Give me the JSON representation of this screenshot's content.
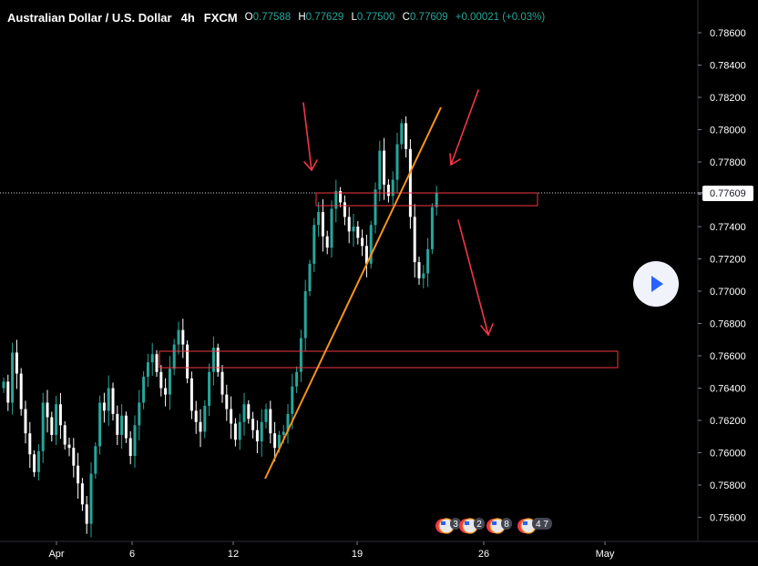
{
  "header": {
    "symbol_title": "Australian Dollar / U.S. Dollar",
    "interval": "4h",
    "source": "FXCM",
    "o_label": "O",
    "o_value": "0.77588",
    "h_label": "H",
    "h_value": "0.77629",
    "l_label": "L",
    "l_value": "0.77500",
    "c_label": "C",
    "c_value": "0.77609",
    "change": "+0.00021 (+0.03%)"
  },
  "price_scale": {
    "labels": [
      "0.78600",
      "0.78400",
      "0.78200",
      "0.78000",
      "0.77800",
      "0.77600",
      "0.77400",
      "0.77200",
      "0.77000",
      "0.76800",
      "0.76600",
      "0.76400",
      "0.76200",
      "0.76000",
      "0.75800",
      "0.75600"
    ],
    "last_price": "0.77609"
  },
  "time_scale": {
    "labels": [
      "Apr",
      "6",
      "12",
      "19",
      "26",
      "May"
    ]
  },
  "event_badges": [
    {
      "icon": "us-flag-icon",
      "count": "3"
    },
    {
      "icon": "us-flag-icon",
      "count": "2"
    },
    {
      "icon": "us-flag-icon",
      "count": "8"
    },
    {
      "icon": "us-flag-icon",
      "count": "4 7"
    }
  ],
  "colors": {
    "up": "#26a69a",
    "down": "#ffffff",
    "trendline": "#f7931a",
    "arrows": "#f23645",
    "zones": "#f23645",
    "background": "#000000"
  },
  "chart_data": {
    "type": "candlestick",
    "title": "Australian Dollar / U.S. Dollar",
    "interval": "4h",
    "ylim": [
      0.7545,
      0.7872
    ],
    "x_ticks": [
      "Apr",
      "6",
      "12",
      "19",
      "26",
      "May"
    ],
    "grid": false,
    "last_price": 0.77609,
    "closes_approx": [
      0.7644,
      0.7631,
      0.7662,
      0.7649,
      0.7627,
      0.7612,
      0.7599,
      0.7588,
      0.7601,
      0.7631,
      0.7622,
      0.7611,
      0.763,
      0.7617,
      0.7605,
      0.7603,
      0.7592,
      0.7581,
      0.7568,
      0.7556,
      0.7587,
      0.7604,
      0.7631,
      0.7626,
      0.764,
      0.7624,
      0.7611,
      0.7623,
      0.7609,
      0.7598,
      0.7617,
      0.7631,
      0.7647,
      0.7656,
      0.7661,
      0.765,
      0.764,
      0.7636,
      0.7652,
      0.7667,
      0.7676,
      0.7667,
      0.7646,
      0.7626,
      0.7619,
      0.7613,
      0.7629,
      0.765,
      0.7665,
      0.765,
      0.7636,
      0.7627,
      0.7618,
      0.7608,
      0.7619,
      0.763,
      0.7621,
      0.7614,
      0.7607,
      0.7619,
      0.7627,
      0.7612,
      0.7603,
      0.7611,
      0.7613,
      0.7624,
      0.7641,
      0.765,
      0.7671,
      0.77,
      0.7717,
      0.7741,
      0.7749,
      0.7734,
      0.7727,
      0.7751,
      0.7762,
      0.7755,
      0.7746,
      0.7737,
      0.774,
      0.7733,
      0.7728,
      0.7717,
      0.7741,
      0.7763,
      0.7787,
      0.7766,
      0.7759,
      0.7769,
      0.7791,
      0.7804,
      0.7788,
      0.7746,
      0.7718,
      0.7708,
      0.7711,
      0.7726,
      0.7752,
      0.7761
    ],
    "annotations": [
      {
        "type": "trendline",
        "from": {
          "date": "Apr 13",
          "price": 0.7584
        },
        "to": {
          "date": "Apr 23",
          "price": 0.7814
        }
      },
      {
        "type": "zone",
        "price_range": [
          0.77545,
          0.77615
        ]
      },
      {
        "type": "zone",
        "price_range": [
          0.76535,
          0.7663
        ]
      },
      {
        "type": "arrow",
        "direction": "down"
      },
      {
        "type": "arrow",
        "direction": "down"
      },
      {
        "type": "arrow",
        "direction": "down"
      }
    ]
  }
}
